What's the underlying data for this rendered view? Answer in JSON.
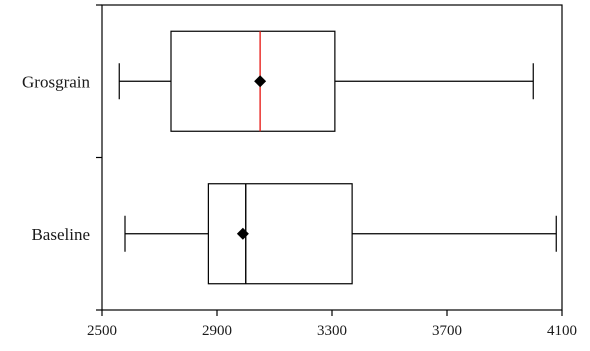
{
  "chart_data": {
    "type": "box",
    "orientation": "horizontal",
    "x_ticks": [
      2500,
      2900,
      3300,
      3700,
      4100
    ],
    "xlim": [
      2500,
      4100
    ],
    "grid": false,
    "categories": [
      "Grosgrain",
      "Baseline"
    ],
    "boxes": [
      {
        "label": "Grosgrain",
        "min": 2560,
        "q1": 2740,
        "median": 3050,
        "mean": 3050,
        "q3": 3310,
        "max": 4000,
        "median_color": "#e8231f"
      },
      {
        "label": "Baseline",
        "min": 2580,
        "q1": 2870,
        "median": 3000,
        "mean": 2990,
        "q3": 3370,
        "max": 4080,
        "median_color": "#000000"
      }
    ]
  }
}
